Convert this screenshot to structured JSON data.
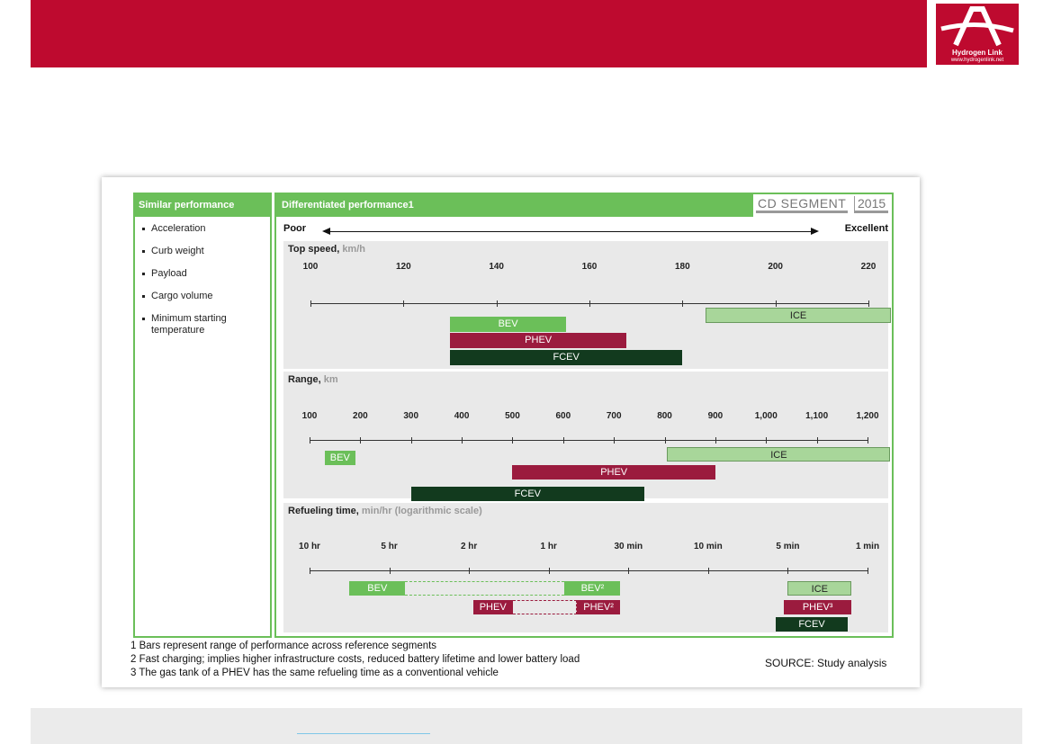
{
  "logo": {
    "name": "Hydrogen Link",
    "url": "www.hydrogenlink.net"
  },
  "similar_performance": {
    "title": "Similar performance",
    "items": [
      "Acceleration",
      "Curb weight",
      "Payload",
      "Cargo volume",
      "Minimum starting temperature"
    ]
  },
  "differentiated": {
    "title": "Differentiated performance1",
    "segment": "CD SEGMENT",
    "year": "2015",
    "poor": "Poor",
    "excellent": "Excellent"
  },
  "colors": {
    "header": "#be0a2f",
    "green": "#6bbf59",
    "BEV": "#6bbf59",
    "PHEV": "#9b1b3e",
    "FCEV": "#123a1e",
    "ICE": "#a8d69a"
  },
  "chart_data": [
    {
      "type": "bar",
      "id": "top-speed",
      "title": "Top speed,",
      "unit": "km/h",
      "ticks": [
        100,
        120,
        140,
        160,
        180,
        200,
        220
      ],
      "tick_labels": [
        "100",
        "120",
        "140",
        "160",
        "180",
        "200",
        "220"
      ],
      "xlim": [
        100,
        220
      ],
      "series": [
        {
          "name": "BEV",
          "range": [
            130,
            155
          ]
        },
        {
          "name": "PHEV",
          "range": [
            130,
            168
          ]
        },
        {
          "name": "FCEV",
          "range": [
            130,
            180
          ]
        },
        {
          "name": "ICE",
          "range": [
            185,
            226
          ]
        }
      ]
    },
    {
      "type": "bar",
      "id": "range",
      "title": "Range,",
      "unit": "km",
      "ticks": [
        100,
        200,
        300,
        400,
        500,
        600,
        700,
        800,
        900,
        1000,
        1100,
        1200
      ],
      "tick_labels": [
        "100",
        "200",
        "300",
        "400",
        "500",
        "600",
        "700",
        "800",
        "900",
        "1,000",
        "1,100",
        "1,200"
      ],
      "xlim": [
        100,
        1200
      ],
      "series": [
        {
          "name": "BEV",
          "range": [
            130,
            190
          ]
        },
        {
          "name": "PHEV",
          "range": [
            500,
            900
          ]
        },
        {
          "name": "FCEV",
          "range": [
            300,
            760
          ]
        },
        {
          "name": "ICE",
          "range": [
            805,
            1245
          ]
        }
      ]
    },
    {
      "type": "bar",
      "id": "refueling",
      "title": "Refueling time,",
      "unit": "min/hr (logarithmic scale)",
      "ticks": [
        0,
        1,
        2,
        3,
        4,
        5,
        6,
        7
      ],
      "tick_labels": [
        "10 hr",
        "5 hr",
        "2 hr",
        "1 hr",
        "30 min",
        "10 min",
        "5 min",
        "1 min"
      ],
      "xlim": [
        0,
        7
      ],
      "series": [
        {
          "name": "BEV",
          "range": [
            0.5,
            1.2
          ],
          "row": 0
        },
        {
          "name": "BEV",
          "label": "BEV²",
          "range": [
            3.2,
            3.9
          ],
          "row": 0
        },
        {
          "name": "BEV",
          "dashed": true,
          "range": [
            1.2,
            3.2
          ],
          "row": 0
        },
        {
          "name": "ICE",
          "range": [
            6.0,
            6.8
          ],
          "row": 0
        },
        {
          "name": "PHEV",
          "range": [
            2.05,
            2.55
          ],
          "row": 1
        },
        {
          "name": "PHEV",
          "label": "PHEV²",
          "range": [
            3.35,
            3.9
          ],
          "row": 1
        },
        {
          "name": "PHEV",
          "dashed": true,
          "range": [
            2.55,
            3.35
          ],
          "row": 1
        },
        {
          "name": "PHEV",
          "label": "PHEV³",
          "range": [
            5.95,
            6.8
          ],
          "row": 1
        },
        {
          "name": "FCEV",
          "range": [
            5.85,
            6.75
          ],
          "row": 2
        }
      ]
    }
  ],
  "footnotes": [
    "1 Bars represent range of performance across reference segments",
    "2 Fast charging; implies higher infrastructure costs, reduced battery lifetime and lower battery load",
    "3 The gas tank of a PHEV has the same refueling time as a conventional vehicle"
  ],
  "source": "SOURCE: Study analysis"
}
